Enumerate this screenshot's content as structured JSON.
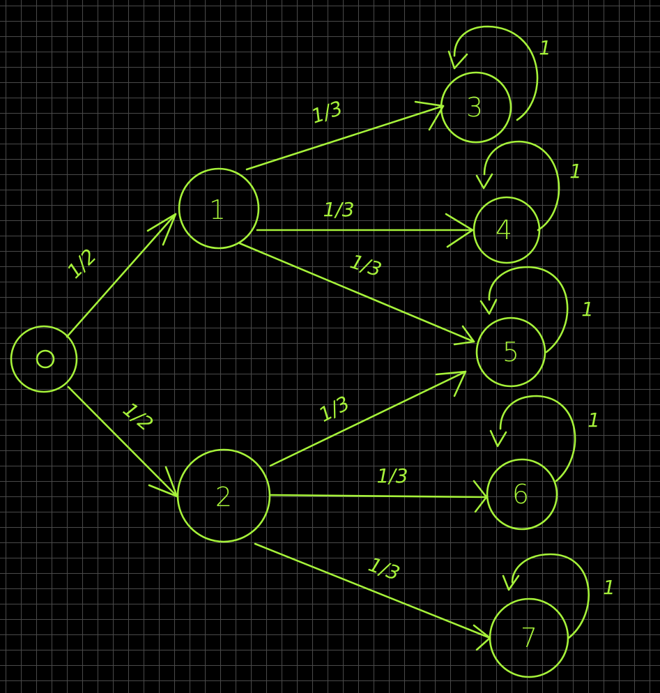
{
  "diagram": {
    "type": "state-transition-graph",
    "stroke_color": "#a6f23a",
    "background_color": "#000000",
    "grid_color": "#4a4a4a",
    "nodes": [
      {
        "id": "n0",
        "label": "0"
      },
      {
        "id": "n1",
        "label": "1"
      },
      {
        "id": "n2",
        "label": "2"
      },
      {
        "id": "n3",
        "label": "3"
      },
      {
        "id": "n4",
        "label": "4"
      },
      {
        "id": "n5",
        "label": "5"
      },
      {
        "id": "n6",
        "label": "6"
      },
      {
        "id": "n7",
        "label": "7"
      }
    ],
    "edges": [
      {
        "from": "0",
        "to": "1",
        "label": "1/2"
      },
      {
        "from": "0",
        "to": "2",
        "label": "1/2"
      },
      {
        "from": "1",
        "to": "3",
        "label": "1/3"
      },
      {
        "from": "1",
        "to": "4",
        "label": "1/3"
      },
      {
        "from": "1",
        "to": "5",
        "label": "1/3"
      },
      {
        "from": "2",
        "to": "5",
        "label": "1/3"
      },
      {
        "from": "2",
        "to": "6",
        "label": "1/3"
      },
      {
        "from": "2",
        "to": "7",
        "label": "1/3"
      },
      {
        "from": "3",
        "to": "3",
        "label": "1"
      },
      {
        "from": "4",
        "to": "4",
        "label": "1"
      },
      {
        "from": "5",
        "to": "5",
        "label": "1"
      },
      {
        "from": "6",
        "to": "6",
        "label": "1"
      },
      {
        "from": "7",
        "to": "7",
        "label": "1"
      }
    ]
  }
}
